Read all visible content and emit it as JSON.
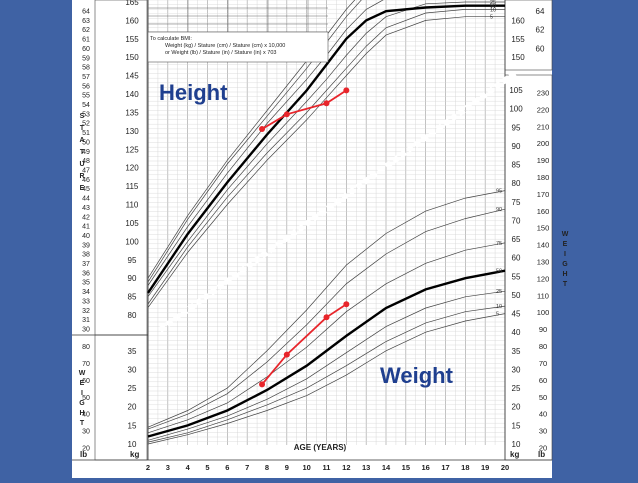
{
  "slide": {
    "background": "#3f62a4",
    "chart_background": "#ffffff",
    "accent": "#e8252b",
    "label_color": "#1f3f8f"
  },
  "labels": {
    "height": "Height",
    "weight": "Weight",
    "stature_side": "STATURE",
    "weight_side_left": "WEIGHT",
    "weight_side_right": "WEIGHT",
    "age_axis": "AGE (YEARS)",
    "kg_left": "kg",
    "lb_left": "lb",
    "kg_right": "kg",
    "lb_right": "lb",
    "bmi_title": "To calculate BMI:",
    "bmi_formula_1": "Weight (kg) / Stature (cm) / Stature (cm) x 10,000",
    "bmi_formula_2": "or  Weight (lb) / Stature (in) / Stature (in) x 703"
  },
  "chart_data": [
    {
      "type": "line",
      "name": "Stature-for-age",
      "xlabel": "AGE (YEARS)",
      "x_ticks": [
        2,
        3,
        4,
        5,
        6,
        7,
        8,
        9,
        10,
        11,
        12,
        13,
        14,
        15,
        16,
        17,
        18,
        19,
        20
      ],
      "xlim": [
        2,
        20
      ],
      "ylim_cm": [
        77,
        165
      ],
      "y_ticks_in_left": [
        30,
        31,
        32,
        33,
        34,
        35,
        36,
        37,
        38,
        39,
        40,
        41,
        42,
        43,
        44,
        45,
        46,
        47,
        48,
        49,
        50,
        51,
        52,
        53,
        54,
        55,
        56,
        57,
        58,
        59,
        60,
        61,
        62,
        63,
        64
      ],
      "y_ticks_cm_left": [
        80,
        85,
        90,
        95,
        100,
        105,
        110,
        115,
        120,
        125,
        130,
        135,
        140,
        145,
        150,
        155,
        160,
        165
      ],
      "y_ticks_cm_right": [
        150,
        155,
        160
      ],
      "y_ticks_in_right": [
        60,
        62,
        64
      ],
      "percentile_labels": [
        "50",
        "25",
        "10",
        "5"
      ],
      "percentiles": [
        {
          "p": 5,
          "x": [
            2,
            4,
            6,
            8,
            10,
            11,
            12,
            13,
            14,
            16,
            18,
            20
          ],
          "y": [
            82,
            97,
            110,
            122,
            133,
            139,
            145,
            151,
            156,
            160,
            161,
            161
          ]
        },
        {
          "p": 10,
          "x": [
            2,
            4,
            6,
            8,
            10,
            11,
            12,
            13,
            14,
            16,
            18,
            20
          ],
          "y": [
            83,
            98.5,
            112,
            124,
            135,
            141,
            147,
            153,
            158,
            162,
            163,
            163
          ]
        },
        {
          "p": 25,
          "x": [
            2,
            4,
            6,
            8,
            10,
            11,
            12,
            13,
            14,
            16,
            18,
            20
          ],
          "y": [
            85,
            100,
            114,
            126.5,
            138,
            144,
            150.5,
            156.5,
            161,
            164.5,
            165,
            165
          ]
        },
        {
          "p": 50,
          "x": [
            2,
            4,
            6,
            8,
            10,
            11,
            12,
            13,
            14,
            16,
            18,
            20
          ],
          "y": [
            86,
            102,
            116,
            129,
            141,
            148,
            155,
            160,
            162.5,
            163.5,
            164,
            164
          ]
        },
        {
          "p": 75,
          "x": [
            2,
            4,
            6,
            8,
            10,
            11,
            12,
            13,
            14,
            16,
            18,
            20
          ],
          "y": [
            88,
            104,
            118.5,
            132,
            144,
            150.5,
            157.5,
            163,
            166,
            167,
            167,
            167
          ]
        },
        {
          "p": 90,
          "x": [
            2,
            4,
            6,
            8,
            10,
            11,
            12,
            13,
            14,
            16,
            18,
            20
          ],
          "y": [
            89,
            106,
            121,
            134,
            147,
            154,
            161,
            167,
            170,
            171,
            171,
            171
          ]
        },
        {
          "p": 95,
          "x": [
            2,
            4,
            6,
            8,
            10,
            11,
            12,
            13,
            14,
            16,
            18,
            20
          ],
          "y": [
            90,
            107,
            122,
            135.5,
            149,
            156,
            163,
            169,
            172,
            173,
            173,
            173
          ]
        }
      ],
      "patient": {
        "x": [
          7.75,
          9,
          11,
          12
        ],
        "y": [
          130.5,
          134.5,
          137.5,
          141
        ]
      }
    },
    {
      "type": "line",
      "name": "Weight-for-age",
      "xlabel": "AGE (YEARS)",
      "xlim": [
        2,
        20
      ],
      "ylim_kg": [
        8,
        107
      ],
      "y_ticks_kg_left": [
        10,
        15,
        20,
        25,
        30,
        35
      ],
      "y_ticks_lb_left": [
        20,
        30,
        40,
        50,
        60,
        70,
        80
      ],
      "y_ticks_kg_right": [
        10,
        15,
        20,
        25,
        30,
        35,
        40,
        45,
        50,
        55,
        60,
        65,
        70,
        75,
        80,
        85,
        90,
        95,
        100,
        105
      ],
      "y_ticks_lb_right": [
        20,
        30,
        40,
        50,
        60,
        70,
        80,
        90,
        100,
        110,
        120,
        130,
        140,
        150,
        160,
        170,
        180,
        190,
        200,
        210,
        220,
        230
      ],
      "percentile_labels": [
        "95",
        "90",
        "75",
        "50",
        "25",
        "10",
        "5"
      ],
      "percentiles": [
        {
          "p": 5,
          "x": [
            2,
            4,
            6,
            8,
            10,
            12,
            14,
            16,
            18,
            20
          ],
          "y": [
            10,
            12.5,
            15.5,
            19,
            23,
            28.5,
            35,
            40,
            43,
            45
          ]
        },
        {
          "p": 10,
          "x": [
            2,
            4,
            6,
            8,
            10,
            12,
            14,
            16,
            18,
            20
          ],
          "y": [
            10.5,
            13,
            16.5,
            20.5,
            25,
            31,
            37.5,
            42.5,
            45.5,
            47
          ]
        },
        {
          "p": 25,
          "x": [
            2,
            4,
            6,
            8,
            10,
            12,
            14,
            16,
            18,
            20
          ],
          "y": [
            11,
            14,
            17.5,
            22,
            27.5,
            34.5,
            41.5,
            46.5,
            49.5,
            51
          ]
        },
        {
          "p": 50,
          "x": [
            2,
            4,
            6,
            8,
            10,
            12,
            14,
            16,
            18,
            20
          ],
          "y": [
            12,
            15,
            19,
            24.5,
            31,
            39,
            46.5,
            51.5,
            54.5,
            56.5
          ]
        },
        {
          "p": 75,
          "x": [
            2,
            4,
            6,
            8,
            10,
            12,
            14,
            16,
            18,
            20
          ],
          "y": [
            13,
            16.5,
            21,
            28,
            36,
            45.5,
            53,
            58.5,
            62,
            64
          ]
        },
        {
          "p": 90,
          "x": [
            2,
            4,
            6,
            8,
            10,
            12,
            14,
            16,
            18,
            20
          ],
          "y": [
            14,
            18,
            23.5,
            32,
            42,
            53,
            61,
            67,
            70.5,
            73
          ]
        },
        {
          "p": 95,
          "x": [
            2,
            4,
            6,
            8,
            10,
            12,
            14,
            16,
            18,
            20
          ],
          "y": [
            14.5,
            19,
            25,
            35,
            46,
            58,
            66.5,
            72.5,
            76,
            78
          ]
        }
      ],
      "patient": {
        "x": [
          7.75,
          9,
          11,
          12
        ],
        "y": [
          26,
          34,
          44,
          47.5
        ]
      }
    }
  ]
}
